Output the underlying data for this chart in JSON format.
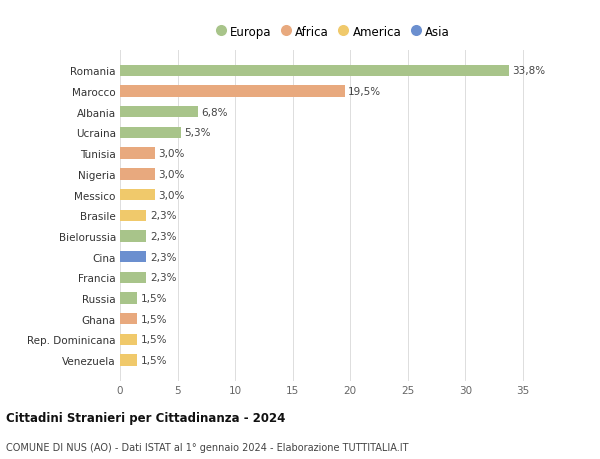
{
  "categories": [
    "Romania",
    "Marocco",
    "Albania",
    "Ucraina",
    "Tunisia",
    "Nigeria",
    "Messico",
    "Brasile",
    "Bielorussia",
    "Cina",
    "Francia",
    "Russia",
    "Ghana",
    "Rep. Dominicana",
    "Venezuela"
  ],
  "values": [
    33.8,
    19.5,
    6.8,
    5.3,
    3.0,
    3.0,
    3.0,
    2.3,
    2.3,
    2.3,
    2.3,
    1.5,
    1.5,
    1.5,
    1.5
  ],
  "labels": [
    "33,8%",
    "19,5%",
    "6,8%",
    "5,3%",
    "3,0%",
    "3,0%",
    "3,0%",
    "2,3%",
    "2,3%",
    "2,3%",
    "2,3%",
    "1,5%",
    "1,5%",
    "1,5%",
    "1,5%"
  ],
  "colors": [
    "#a8c48a",
    "#e8a97e",
    "#a8c48a",
    "#a8c48a",
    "#e8a97e",
    "#e8a97e",
    "#f0c96b",
    "#f0c96b",
    "#a8c48a",
    "#6b8fcf",
    "#a8c48a",
    "#a8c48a",
    "#e8a97e",
    "#f0c96b",
    "#f0c96b"
  ],
  "legend_labels": [
    "Europa",
    "Africa",
    "America",
    "Asia"
  ],
  "legend_colors": [
    "#a8c48a",
    "#e8a97e",
    "#f0c96b",
    "#6b8fcf"
  ],
  "title": "Cittadini Stranieri per Cittadinanza - 2024",
  "subtitle": "COMUNE DI NUS (AO) - Dati ISTAT al 1° gennaio 2024 - Elaborazione TUTTITALIA.IT",
  "xlim": [
    0,
    37
  ],
  "xticks": [
    0,
    5,
    10,
    15,
    20,
    25,
    30,
    35
  ],
  "background_color": "#ffffff",
  "grid_color": "#dddddd"
}
